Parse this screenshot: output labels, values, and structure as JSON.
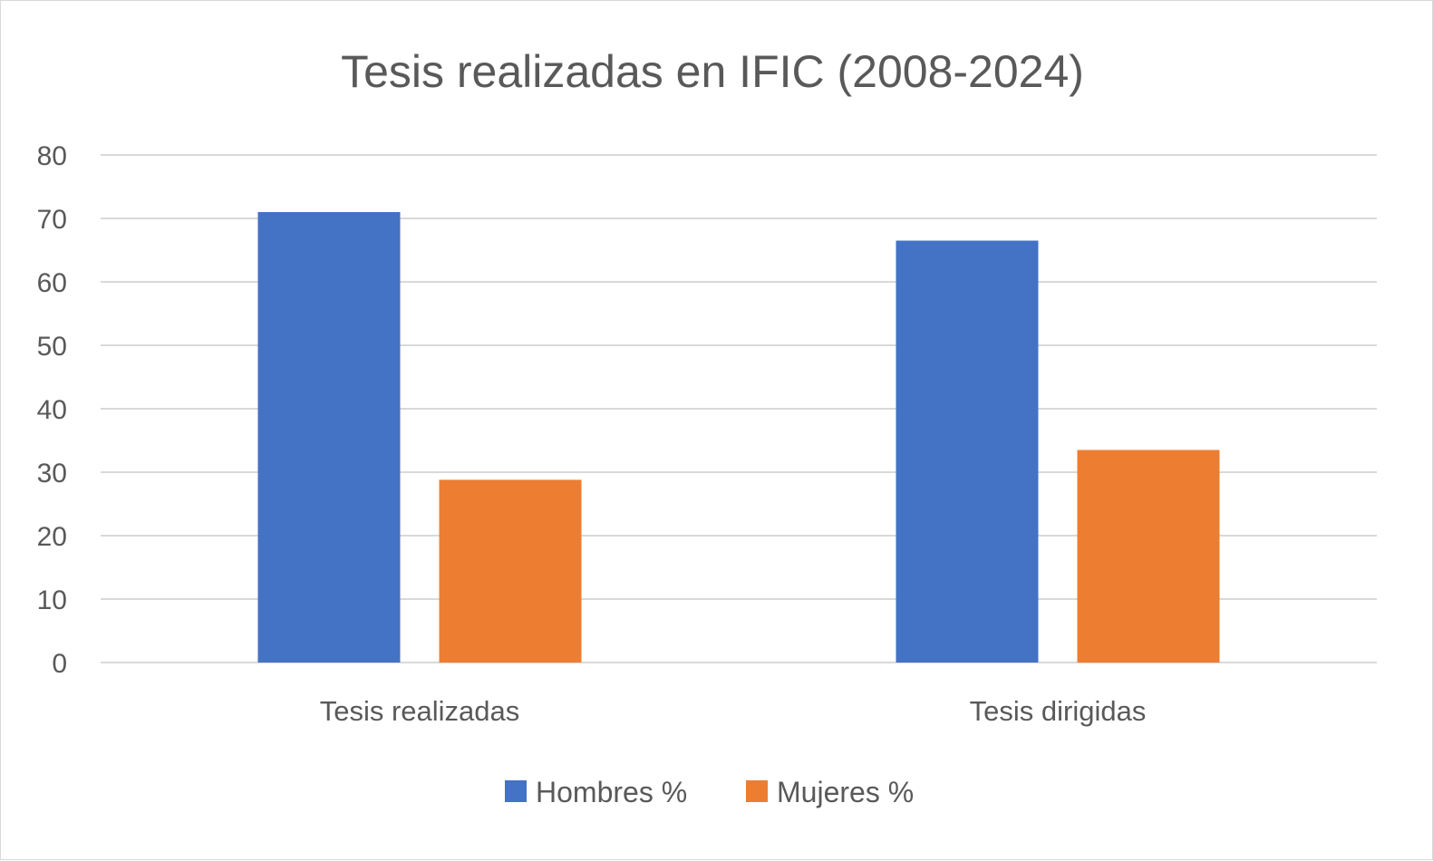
{
  "chart_data": {
    "type": "bar",
    "title": "Tesis realizadas en IFIC (2008-2024)",
    "categories": [
      "Tesis realizadas",
      "Tesis dirigidas"
    ],
    "series": [
      {
        "name": "Hombres %",
        "color": "#4472c4",
        "values": [
          71,
          66.5
        ]
      },
      {
        "name": "Mujeres %",
        "color": "#ed7d31",
        "values": [
          28.8,
          33.5
        ]
      }
    ],
    "yticks": [
      "0",
      "10",
      "20",
      "30",
      "40",
      "50",
      "60",
      "70",
      "80"
    ],
    "ylim": [
      0,
      80
    ],
    "grid": true,
    "legend_position": "bottom"
  }
}
